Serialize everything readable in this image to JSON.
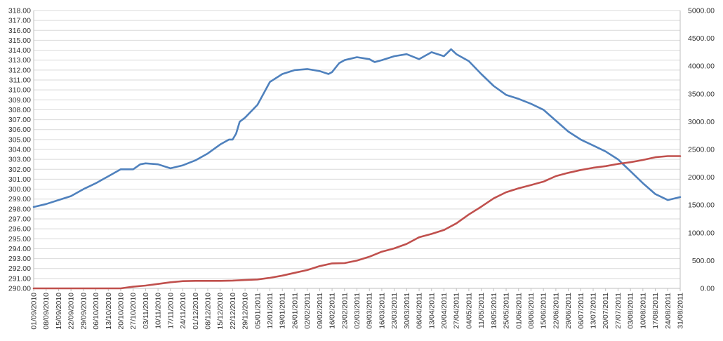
{
  "chart_data": {
    "type": "line",
    "grid": true,
    "legend": "none",
    "x_range": [
      "01/09/2010",
      "31/08/2011"
    ],
    "x_ticks": [
      "01/09/2010",
      "08/09/2010",
      "15/09/2010",
      "22/09/2010",
      "29/09/2010",
      "06/10/2010",
      "13/10/2010",
      "20/10/2010",
      "27/10/2010",
      "03/11/2010",
      "10/11/2010",
      "17/11/2010",
      "24/11/2010",
      "01/12/2010",
      "08/12/2010",
      "15/12/2010",
      "22/12/2010",
      "29/12/2010",
      "05/01/2011",
      "12/01/2011",
      "19/01/2011",
      "26/01/2011",
      "02/02/2011",
      "09/02/2011",
      "16/02/2011",
      "23/02/2011",
      "02/03/2011",
      "09/03/2011",
      "16/03/2011",
      "23/03/2011",
      "30/03/2011",
      "06/04/2011",
      "13/04/2011",
      "20/04/2011",
      "27/04/2011",
      "04/05/2011",
      "11/05/2011",
      "18/05/2011",
      "25/05/2011",
      "01/06/2011",
      "08/06/2011",
      "15/06/2011",
      "22/06/2011",
      "29/06/2011",
      "06/07/2011",
      "13/07/2011",
      "20/07/2011",
      "27/07/2011",
      "03/08/2011",
      "10/08/2011",
      "17/08/2011",
      "24/08/2011",
      "31/08/2011"
    ],
    "y_left": {
      "range": [
        290,
        318
      ],
      "ticks": [
        "290.00",
        "291.00",
        "292.00",
        "293.00",
        "294.00",
        "295.00",
        "296.00",
        "297.00",
        "298.00",
        "299.00",
        "300.00",
        "301.00",
        "302.00",
        "303.00",
        "304.00",
        "305.00",
        "306.00",
        "307.00",
        "308.00",
        "309.00",
        "310.00",
        "311.00",
        "312.00",
        "313.00",
        "314.00",
        "315.00",
        "316.00",
        "317.00",
        "318.00"
      ]
    },
    "y_right": {
      "range": [
        0,
        5000
      ],
      "ticks": [
        "0.00",
        "500.00",
        "1000.00",
        "1500.00",
        "2000.00",
        "2500.00",
        "3000.00",
        "3500.00",
        "4000.00",
        "4500.00",
        "5000.00"
      ]
    },
    "series": [
      {
        "axis": "left",
        "color": "#4f81bd",
        "points": [
          [
            "01/09/2010",
            298.2
          ],
          [
            "08/09/2010",
            298.5
          ],
          [
            "15/09/2010",
            298.9
          ],
          [
            "22/09/2010",
            299.3
          ],
          [
            "29/09/2010",
            300.0
          ],
          [
            "06/10/2010",
            300.6
          ],
          [
            "13/10/2010",
            301.3
          ],
          [
            "20/10/2010",
            302.0
          ],
          [
            "27/10/2010",
            302.0
          ],
          [
            "31/10/2010",
            302.5
          ],
          [
            "03/11/2010",
            302.6
          ],
          [
            "10/11/2010",
            302.5
          ],
          [
            "17/11/2010",
            302.1
          ],
          [
            "24/11/2010",
            302.4
          ],
          [
            "01/12/2010",
            302.9
          ],
          [
            "08/12/2010",
            303.6
          ],
          [
            "15/12/2010",
            304.5
          ],
          [
            "20/12/2010",
            305.0
          ],
          [
            "22/12/2010",
            305.0
          ],
          [
            "24/12/2010",
            305.6
          ],
          [
            "26/12/2010",
            306.8
          ],
          [
            "29/12/2010",
            307.2
          ],
          [
            "05/01/2011",
            308.5
          ],
          [
            "12/01/2011",
            310.8
          ],
          [
            "19/01/2011",
            311.6
          ],
          [
            "26/01/2011",
            312.0
          ],
          [
            "02/02/2011",
            312.1
          ],
          [
            "09/02/2011",
            311.9
          ],
          [
            "14/02/2011",
            311.6
          ],
          [
            "16/02/2011",
            311.8
          ],
          [
            "20/02/2011",
            312.7
          ],
          [
            "23/02/2011",
            313.0
          ],
          [
            "02/03/2011",
            313.3
          ],
          [
            "09/03/2011",
            313.1
          ],
          [
            "12/03/2011",
            312.8
          ],
          [
            "16/03/2011",
            313.0
          ],
          [
            "23/03/2011",
            313.4
          ],
          [
            "30/03/2011",
            313.6
          ],
          [
            "06/04/2011",
            313.1
          ],
          [
            "13/04/2011",
            313.8
          ],
          [
            "20/04/2011",
            313.4
          ],
          [
            "24/04/2011",
            314.1
          ],
          [
            "27/04/2011",
            313.6
          ],
          [
            "04/05/2011",
            312.9
          ],
          [
            "11/05/2011",
            311.6
          ],
          [
            "18/05/2011",
            310.4
          ],
          [
            "25/05/2011",
            309.5
          ],
          [
            "01/06/2011",
            309.1
          ],
          [
            "08/06/2011",
            308.6
          ],
          [
            "15/06/2011",
            308.0
          ],
          [
            "22/06/2011",
            306.9
          ],
          [
            "29/06/2011",
            305.8
          ],
          [
            "06/07/2011",
            305.0
          ],
          [
            "13/07/2011",
            304.4
          ],
          [
            "20/07/2011",
            303.8
          ],
          [
            "27/07/2011",
            303.0
          ],
          [
            "03/08/2011",
            301.8
          ],
          [
            "10/08/2011",
            300.6
          ],
          [
            "17/08/2011",
            299.5
          ],
          [
            "24/08/2011",
            298.9
          ],
          [
            "31/08/2011",
            299.2
          ]
        ]
      },
      {
        "axis": "right",
        "color": "#c0504d",
        "points": [
          [
            "01/09/2010",
            0
          ],
          [
            "20/10/2010",
            0
          ],
          [
            "27/10/2010",
            30
          ],
          [
            "03/11/2010",
            50
          ],
          [
            "10/11/2010",
            80
          ],
          [
            "17/11/2010",
            110
          ],
          [
            "24/11/2010",
            130
          ],
          [
            "01/12/2010",
            135
          ],
          [
            "08/12/2010",
            135
          ],
          [
            "15/12/2010",
            135
          ],
          [
            "22/12/2010",
            140
          ],
          [
            "29/12/2010",
            150
          ],
          [
            "05/01/2011",
            160
          ],
          [
            "12/01/2011",
            190
          ],
          [
            "19/01/2011",
            230
          ],
          [
            "26/01/2011",
            280
          ],
          [
            "02/02/2011",
            330
          ],
          [
            "09/02/2011",
            400
          ],
          [
            "16/02/2011",
            450
          ],
          [
            "23/02/2011",
            455
          ],
          [
            "02/03/2011",
            500
          ],
          [
            "09/03/2011",
            570
          ],
          [
            "16/03/2011",
            660
          ],
          [
            "23/03/2011",
            720
          ],
          [
            "30/03/2011",
            800
          ],
          [
            "06/04/2011",
            920
          ],
          [
            "13/04/2011,",
            980
          ],
          [
            "20/04/2011",
            1050
          ],
          [
            "27/04/2011",
            1170
          ],
          [
            "04/05/2011",
            1330
          ],
          [
            "11/05/2011",
            1470
          ],
          [
            "18/05/2011",
            1620
          ],
          [
            "25/05/2011",
            1730
          ],
          [
            "01/06/2011",
            1800
          ],
          [
            "08/06/2011",
            1860
          ],
          [
            "15/06/2011",
            1920
          ],
          [
            "22/06/2011",
            2020
          ],
          [
            "29/06/2011",
            2080
          ],
          [
            "06/07/2011",
            2130
          ],
          [
            "13/07/2011",
            2170
          ],
          [
            "20/07/2011",
            2200
          ],
          [
            "27/07/2011",
            2240
          ],
          [
            "03/08/2011",
            2270
          ],
          [
            "10/08/2011",
            2310
          ],
          [
            "17/08/2011",
            2360
          ],
          [
            "24/08/2011",
            2380
          ],
          [
            "31/08/2011",
            2380
          ]
        ]
      }
    ]
  }
}
